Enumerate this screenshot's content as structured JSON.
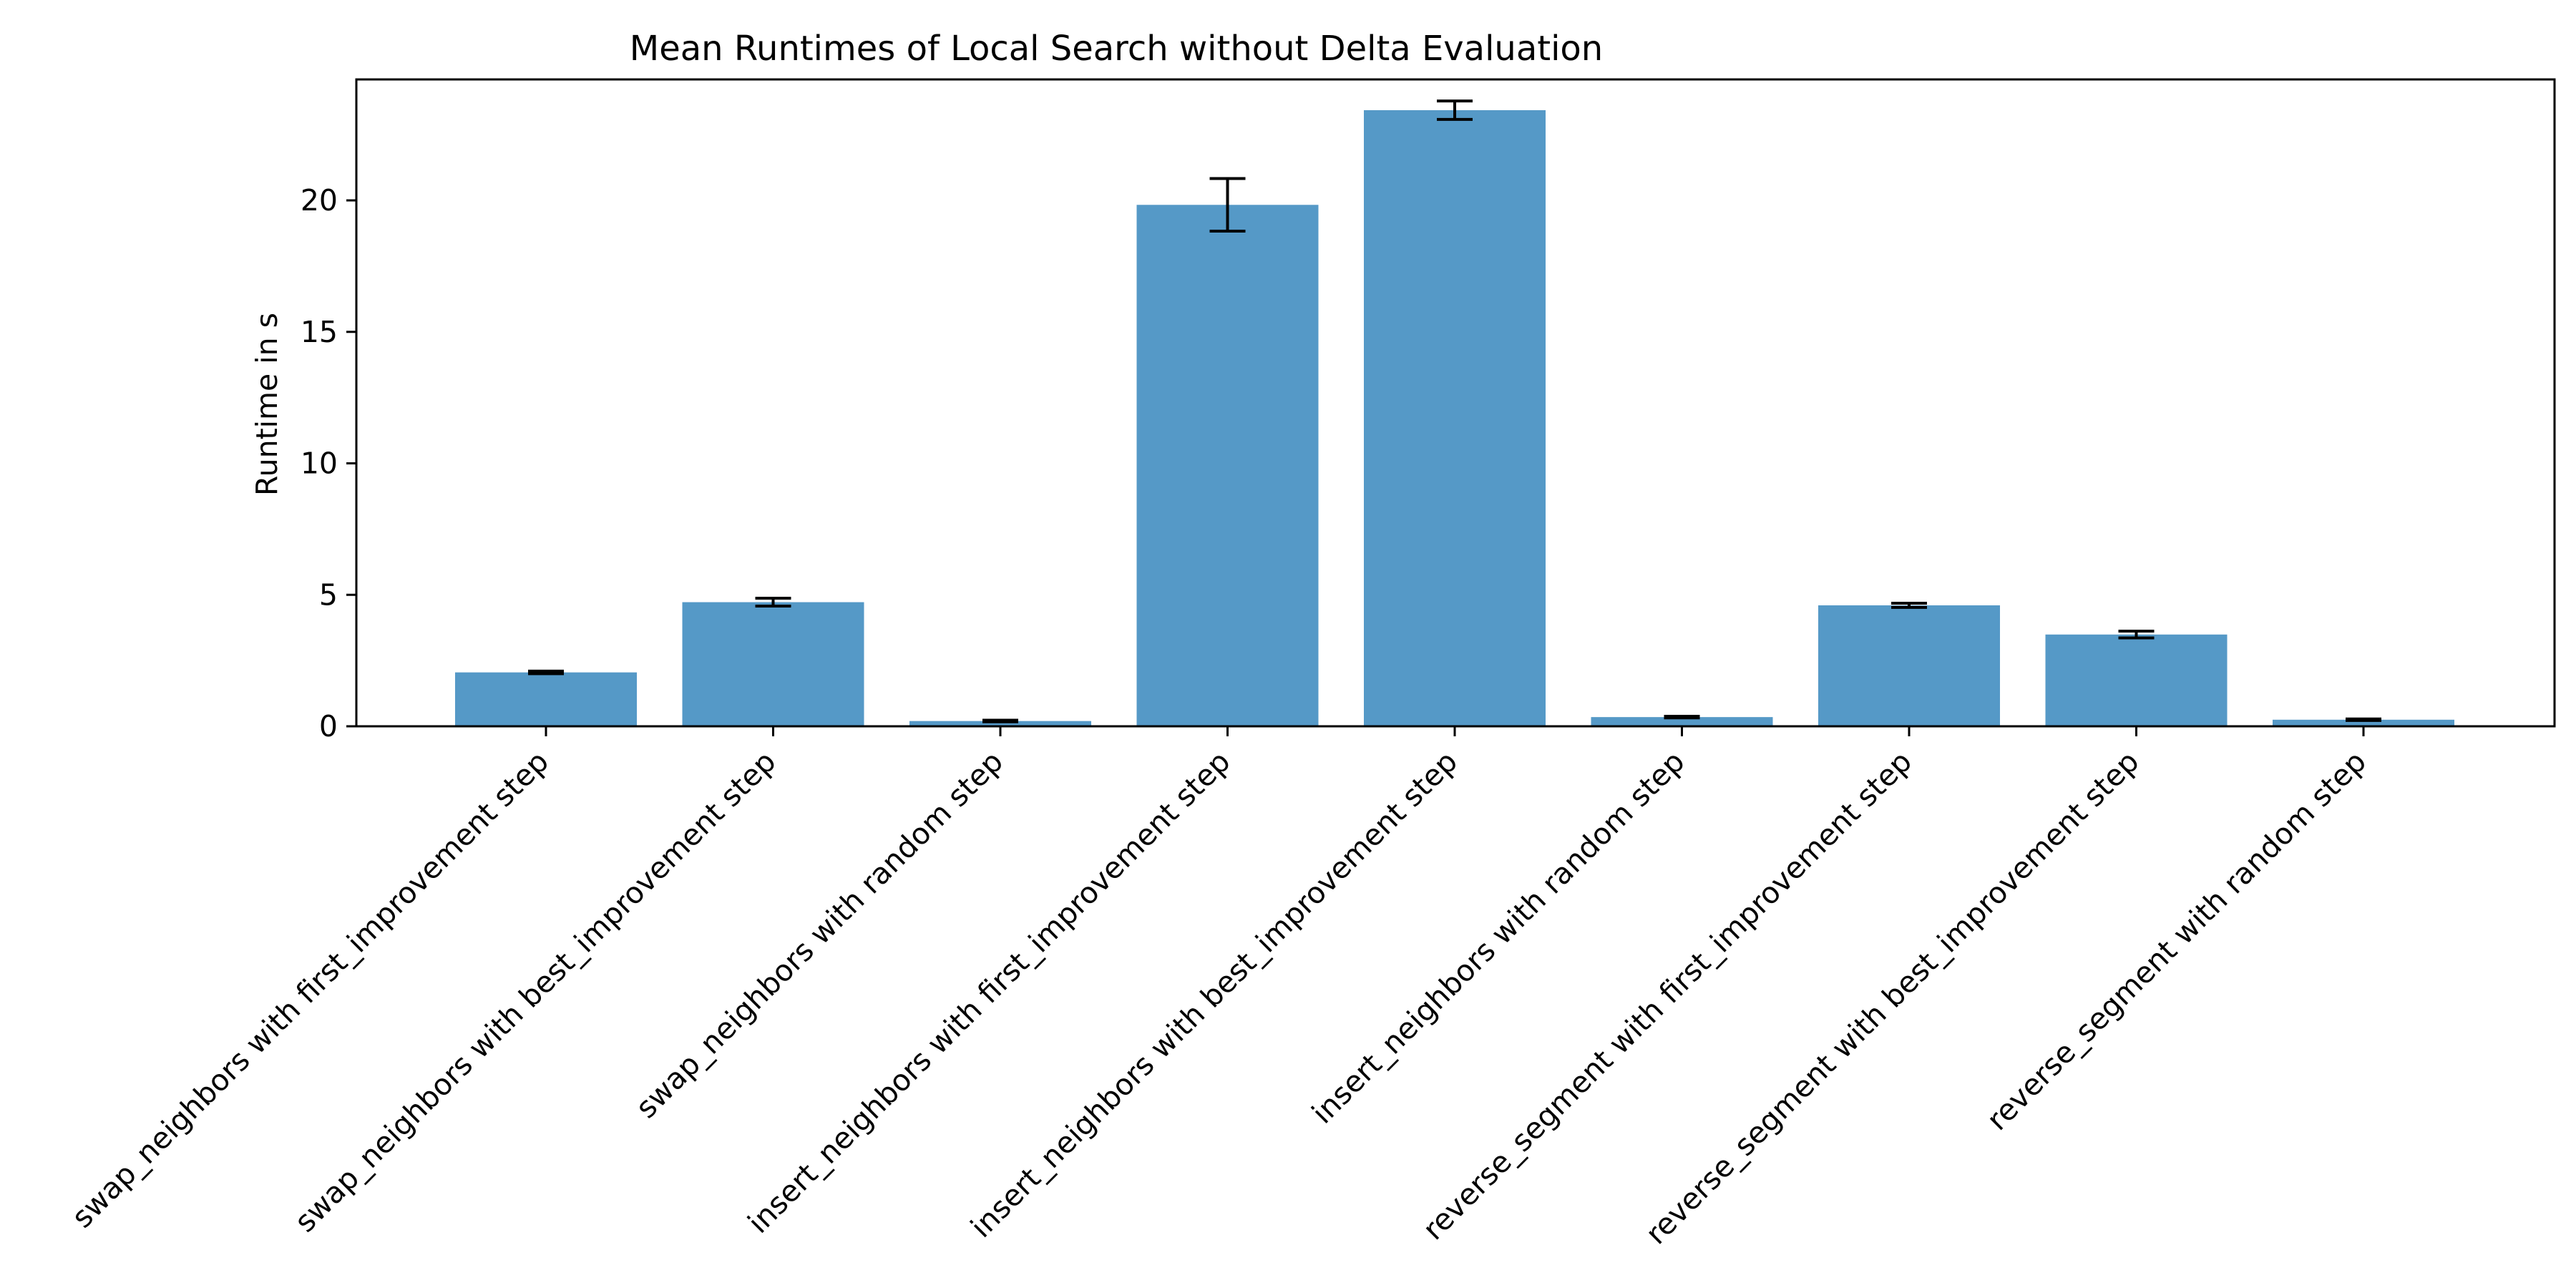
{
  "chart_data": {
    "type": "bar",
    "title": "Mean Runtimes of Local Search without Delta Evaluation",
    "xlabel": "",
    "ylabel": "Runtime in s",
    "ylim": [
      0,
      24.6
    ],
    "yticks": [
      0,
      5,
      10,
      15,
      20
    ],
    "ytick_labels": [
      "0",
      "5",
      "10",
      "15",
      "20"
    ],
    "grid": false,
    "bar_color": "#5599c7",
    "categories": [
      "swap_neighbors with first_improvement step",
      "swap_neighbors with best_improvement step",
      "swap_neighbors with random step",
      "insert_neighbors with first_improvement step",
      "insert_neighbors with best_improvement step",
      "insert_neighbors with random step",
      "reverse_segment with first_improvement step",
      "reverse_segment with best_improvement step",
      "reverse_segment with random step"
    ],
    "values": [
      2.05,
      4.72,
      0.2,
      19.83,
      23.43,
      0.35,
      4.6,
      3.49,
      0.25
    ],
    "errors": [
      0.05,
      0.15,
      0.03,
      1.0,
      0.35,
      0.03,
      0.08,
      0.13,
      0.03
    ]
  }
}
